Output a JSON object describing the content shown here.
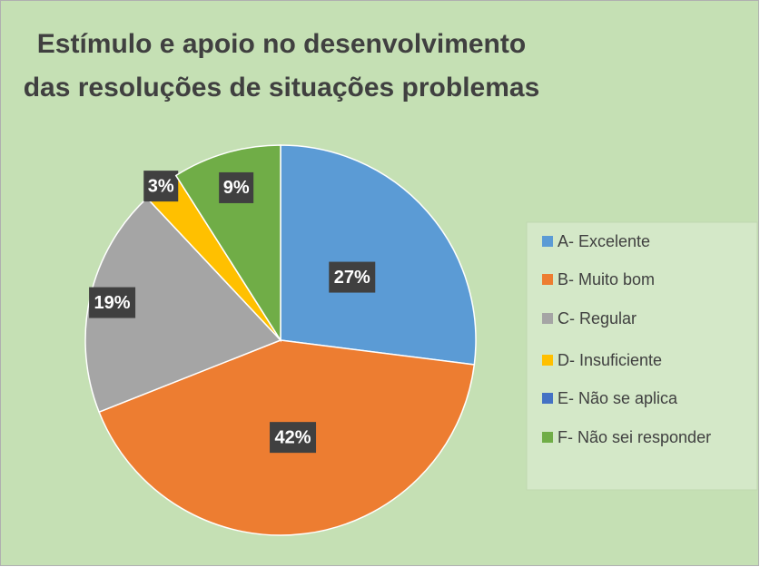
{
  "chart_data": {
    "type": "pie",
    "title": "Estímulo e apoio no desenvolvimento das resoluções de situações problemas",
    "categories": [
      "A- Excelente",
      "B- Muito bom",
      "C- Regular",
      "D- Insuficiente",
      "E- Não se aplica",
      "F- Não sei responder"
    ],
    "values": [
      27,
      42,
      19,
      3,
      0,
      9
    ],
    "value_labels": [
      "27%",
      "42%",
      "19%",
      "3%",
      null,
      "9%"
    ],
    "colors": [
      "#5b9bd5",
      "#ed7d31",
      "#a5a5a5",
      "#ffc000",
      "#4472c4",
      "#70ad47"
    ],
    "legend": "right"
  }
}
